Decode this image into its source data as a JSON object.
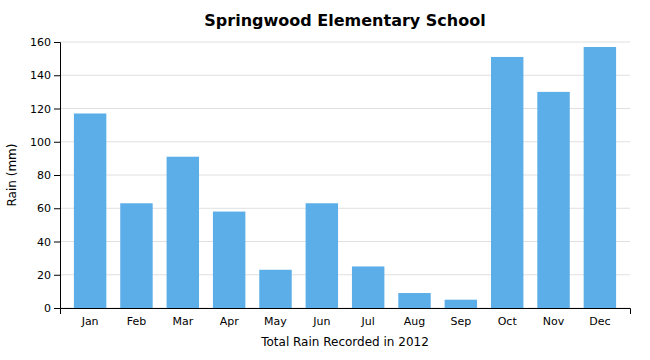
{
  "chart_data": {
    "type": "bar",
    "title": "Springwood Elementary School",
    "xlabel": "Total Rain Recorded in 2012",
    "ylabel": "Rain (mm)",
    "categories": [
      "Jan",
      "Feb",
      "Mar",
      "Apr",
      "May",
      "Jun",
      "Jul",
      "Aug",
      "Sep",
      "Oct",
      "Nov",
      "Dec"
    ],
    "values": [
      117,
      63,
      91,
      58,
      23,
      63,
      25,
      9,
      5,
      151,
      130,
      157
    ],
    "color": "#5BAEE8",
    "ylim": [
      0,
      160
    ],
    "yticks": [
      0,
      20,
      40,
      60,
      80,
      100,
      120,
      140,
      160
    ],
    "grid": true
  }
}
